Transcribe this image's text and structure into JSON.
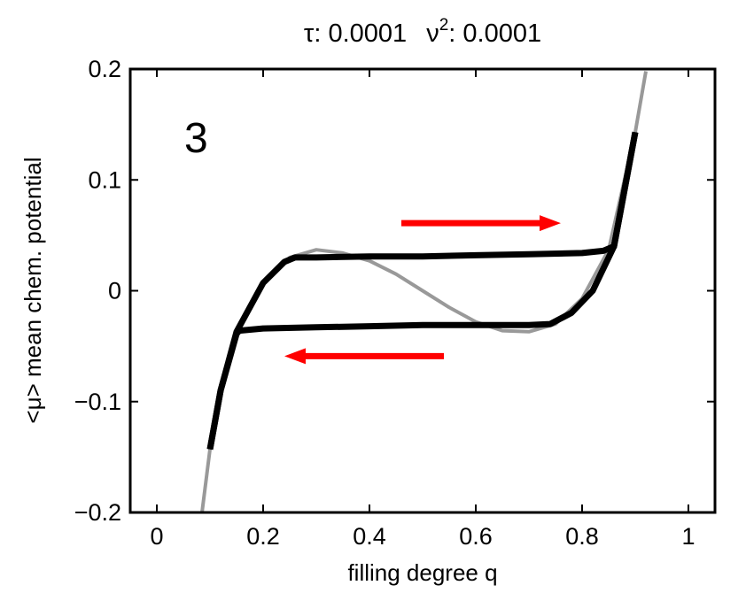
{
  "chart_data": {
    "type": "line",
    "title_parts": {
      "tau_symbol": "τ",
      "tau_value": ": 0.0001",
      "nu_symbol": "ν",
      "nu_exponent": "2",
      "nu_value": ": 0.0001"
    },
    "panel_label": "3",
    "xlabel": "filling degree q",
    "ylabel": "<μ> mean chem. potential",
    "xlim": [
      -0.05,
      1.05
    ],
    "ylim": [
      -0.2,
      0.2
    ],
    "xticks": [
      0,
      0.2,
      0.4,
      0.6,
      0.8,
      1
    ],
    "xtick_labels": [
      "0",
      "0.2",
      "0.4",
      "0.6",
      "0.8",
      "1"
    ],
    "yticks": [
      -0.2,
      -0.1,
      0,
      0.1,
      0.2
    ],
    "ytick_labels": [
      "−0.2",
      "−0.1",
      "0",
      "0.1",
      "0.2"
    ],
    "grid": false,
    "series": [
      {
        "color": "#999999",
        "x": [
          0.085,
          0.1,
          0.12,
          0.15,
          0.2,
          0.25,
          0.3,
          0.35,
          0.4,
          0.45,
          0.5,
          0.55,
          0.6,
          0.65,
          0.7,
          0.75,
          0.8,
          0.85,
          0.9,
          0.92
        ],
        "y": [
          -0.2,
          -0.143,
          -0.09,
          -0.037,
          0.007,
          0.03,
          0.037,
          0.034,
          0.027,
          0.015,
          0.0,
          -0.015,
          -0.028,
          -0.036,
          -0.037,
          -0.03,
          -0.007,
          0.037,
          0.143,
          0.198
        ]
      },
      {
        "color": "#000000",
        "x": [
          0.1,
          0.12,
          0.15,
          0.155,
          0.2,
          0.3,
          0.4,
          0.5,
          0.6,
          0.7,
          0.74,
          0.78,
          0.82,
          0.86,
          0.9
        ],
        "y": [
          -0.143,
          -0.09,
          -0.039,
          -0.036,
          -0.034,
          -0.033,
          -0.032,
          -0.031,
          -0.031,
          -0.031,
          -0.03,
          -0.02,
          0.0,
          0.04,
          0.143
        ]
      },
      {
        "color": "#000000",
        "x": [
          0.1,
          0.12,
          0.15,
          0.2,
          0.24,
          0.26,
          0.3,
          0.4,
          0.5,
          0.6,
          0.7,
          0.8,
          0.84,
          0.86,
          0.9
        ],
        "y": [
          -0.143,
          -0.09,
          -0.037,
          0.007,
          0.026,
          0.03,
          0.03,
          0.031,
          0.031,
          0.032,
          0.033,
          0.034,
          0.036,
          0.04,
          0.143
        ]
      }
    ],
    "arrows": [
      {
        "color": "#ff0000",
        "from": [
          0.46,
          0.061
        ],
        "to": [
          0.76,
          0.061
        ]
      },
      {
        "color": "#ff0000",
        "from": [
          0.54,
          -0.059
        ],
        "to": [
          0.24,
          -0.059
        ]
      }
    ]
  }
}
